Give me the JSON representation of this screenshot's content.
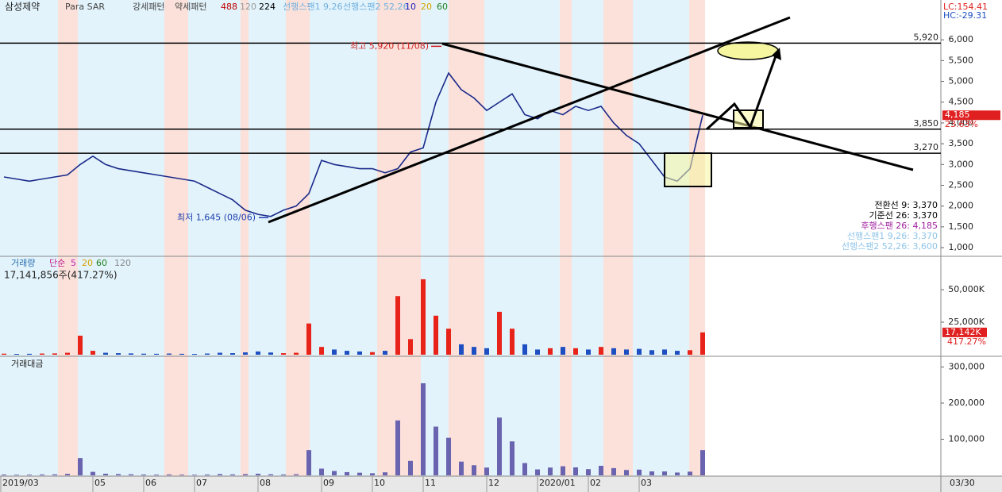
{
  "header": {
    "stock": "삼성제약",
    "indicators": [
      {
        "name": "Para SAR",
        "color": "#444444"
      },
      {
        "name": "강세패턴",
        "color": "#444444"
      },
      {
        "name": "약세패턴",
        "color": "#444444"
      },
      {
        "name": "488",
        "color": "#c00000"
      },
      {
        "name": "120",
        "color": "#999999"
      },
      {
        "name": "224",
        "color": "#000000"
      },
      {
        "name": "선행스팬1 9,26",
        "color": "#6fb0e0"
      },
      {
        "name": "선행스팬2 52,26",
        "color": "#6fb0e0"
      },
      {
        "name": "10",
        "color": "#2020c0"
      },
      {
        "name": "20",
        "color": "#d8a000"
      },
      {
        "name": "60",
        "color": "#208020"
      }
    ],
    "lc": "LC:154.41",
    "hc": "HC:-29.31"
  },
  "chart_data": [
    {
      "type": "line",
      "color": "#1a2a8a",
      "values": [
        2700,
        2650,
        2600,
        2650,
        2700,
        2750,
        3000,
        3200,
        3000,
        2900,
        2850,
        2800,
        2750,
        2700,
        2650,
        2600,
        2450,
        2300,
        2150,
        1900,
        1800,
        1750,
        1900,
        2000,
        2300,
        3100,
        3000,
        2950,
        2900,
        2900,
        2800,
        2900,
        3300,
        3400,
        4500,
        5200,
        4800,
        4600,
        4300,
        4500,
        4700,
        4200,
        4100,
        4300,
        4200,
        4400,
        4300,
        4400,
        4000,
        3700,
        3500,
        3100,
        2700,
        2600,
        2900,
        4185
      ],
      "ylim": [
        810,
        6920
      ],
      "yticks": [
        {
          "value": 1000,
          "label": "1,000"
        },
        {
          "value": 1500,
          "label": "1,500"
        },
        {
          "value": 2000,
          "label": "2,000"
        },
        {
          "value": 2500,
          "label": "2,500"
        },
        {
          "value": 3000,
          "label": "3,000"
        },
        {
          "value": 3500,
          "label": "3,500"
        },
        {
          "value": 4000,
          "label": "4,000"
        },
        {
          "value": 4500,
          "label": "4,500"
        },
        {
          "value": 5000,
          "label": "5,000"
        },
        {
          "value": 5500,
          "label": "5,500"
        },
        {
          "value": 6000,
          "label": "6,000"
        }
      ],
      "hlines": [
        {
          "value": 5920,
          "label": "5,920"
        },
        {
          "value": 3850,
          "label": "3,850"
        },
        {
          "value": 3270,
          "label": "3,270"
        }
      ],
      "high": {
        "value": 5920,
        "label": "최고 5,920 (11/08)"
      },
      "low": {
        "value": 1645,
        "label": "최저 1,645 (08/06)"
      },
      "last": {
        "value": 4185,
        "label": "4,185",
        "change": "23.63%"
      },
      "indicator_values": [
        {
          "text": "전환선 9: 3,370",
          "color": "#000000"
        },
        {
          "text": "기준선 26: 3,370",
          "color": "#000000"
        },
        {
          "text": "후행스팬 26: 4,185",
          "color": "#a020a0"
        },
        {
          "text": "선행스팬1 9,26: 3,370",
          "color": "#8fc4ea"
        },
        {
          "text": "선행스팬2 52,26: 3,600",
          "color": "#8fc4ea"
        }
      ]
    },
    {
      "type": "bar",
      "title": "거래량",
      "legend": [
        {
          "name": "단순",
          "color": "#c02090"
        },
        {
          "name": "5",
          "color": "#c020c0"
        },
        {
          "name": "20",
          "color": "#d8a000"
        },
        {
          "name": "60",
          "color": "#208020"
        },
        {
          "name": "120",
          "color": "#888888"
        }
      ],
      "subtitle": "17,141,856주(417.27%)",
      "values": [
        800,
        600,
        700,
        900,
        1000,
        1500,
        14600,
        3000,
        1500,
        1200,
        1000,
        800,
        700,
        900,
        700,
        600,
        900,
        1500,
        1200,
        1800,
        2500,
        1700,
        1200,
        1500,
        24000,
        6000,
        4000,
        3000,
        2500,
        2000,
        3000,
        45000,
        12000,
        58000,
        30000,
        20000,
        8000,
        6000,
        5000,
        33000,
        20000,
        8000,
        4000,
        5000,
        6000,
        5000,
        4000,
        6000,
        5000,
        4000,
        4500,
        3500,
        4000,
        3000,
        3500,
        17142
      ],
      "up_color": "#e8231a",
      "down_color": "#1e4fc2",
      "ylim": [
        0,
        73800
      ],
      "yticks": [
        {
          "value": 25000,
          "label": "25,000K"
        },
        {
          "value": 50000,
          "label": "50,000K"
        }
      ],
      "last": {
        "value": 17142,
        "label": "17,142K",
        "change": "417.27%"
      }
    },
    {
      "type": "bar",
      "title": "거래대금",
      "color": "#6a64b0",
      "values": [
        2200,
        1600,
        1800,
        2400,
        2700,
        4100,
        48000,
        9600,
        4500,
        3500,
        2900,
        2200,
        1900,
        2400,
        1900,
        1600,
        2200,
        3500,
        2600,
        3400,
        4500,
        3000,
        2300,
        3000,
        70000,
        18600,
        12000,
        8900,
        7300,
        5800,
        8400,
        152000,
        40000,
        255000,
        135000,
        104000,
        38000,
        28000,
        21500,
        160000,
        94000,
        34000,
        16400,
        21500,
        25200,
        22000,
        17200,
        26400,
        20000,
        14800,
        15800,
        10900,
        10800,
        7800,
        10200,
        70000
      ],
      "ylim": [
        0,
        323000
      ],
      "yticks": [
        {
          "value": 100000,
          "label": "100,000"
        },
        {
          "value": 200000,
          "label": "200,000"
        },
        {
          "value": 300000,
          "label": "300,000"
        }
      ],
      "categories": [
        "2019/03",
        null,
        null,
        null,
        null,
        null,
        null,
        "05",
        null,
        null,
        null,
        "06",
        null,
        null,
        null,
        "07",
        null,
        null,
        null,
        null,
        "08",
        null,
        null,
        null,
        null,
        "09",
        null,
        null,
        null,
        "10",
        null,
        null,
        null,
        "11",
        null,
        null,
        null,
        null,
        "12",
        null,
        null,
        null,
        "2020/01",
        null,
        null,
        null,
        "02",
        null,
        null,
        null,
        "03",
        null,
        null,
        null,
        null,
        null
      ],
      "last_date": "03/30"
    }
  ]
}
